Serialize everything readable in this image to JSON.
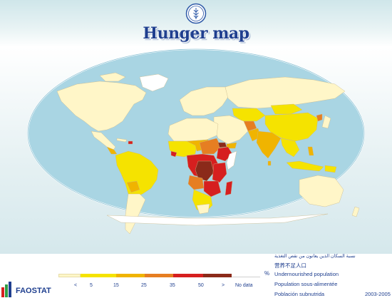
{
  "header": {
    "title": "Hunger map",
    "logo_icon": "fao-emblem-icon"
  },
  "colors": {
    "ocean": "#a9d5e3",
    "land_low": "#fff6c8",
    "cat_5_15": "#f5e300",
    "cat_15_25": "#f0b400",
    "cat_25_35": "#e67e22",
    "cat_35_50": "#d61f1f",
    "cat_50_plus": "#8b2a1a",
    "no_data": "#ffffff",
    "text_blue": "#1f3f8f"
  },
  "legend": {
    "categories": [
      "<",
      "5",
      "15",
      "25",
      "35",
      "50",
      ">",
      "No data"
    ],
    "unit": "%",
    "captions": {
      "arabic": "نسبة السكان الذين يعانون من نقص التغذية",
      "chinese": "营养不足人口",
      "english": "Undernourished population",
      "french": "Population sous-alimentée",
      "spanish": "Población subnutrida"
    },
    "years": "2003-2005"
  },
  "footer": {
    "brand": "FAOSTAT",
    "brand_icon": "faostat-bars-icon"
  }
}
